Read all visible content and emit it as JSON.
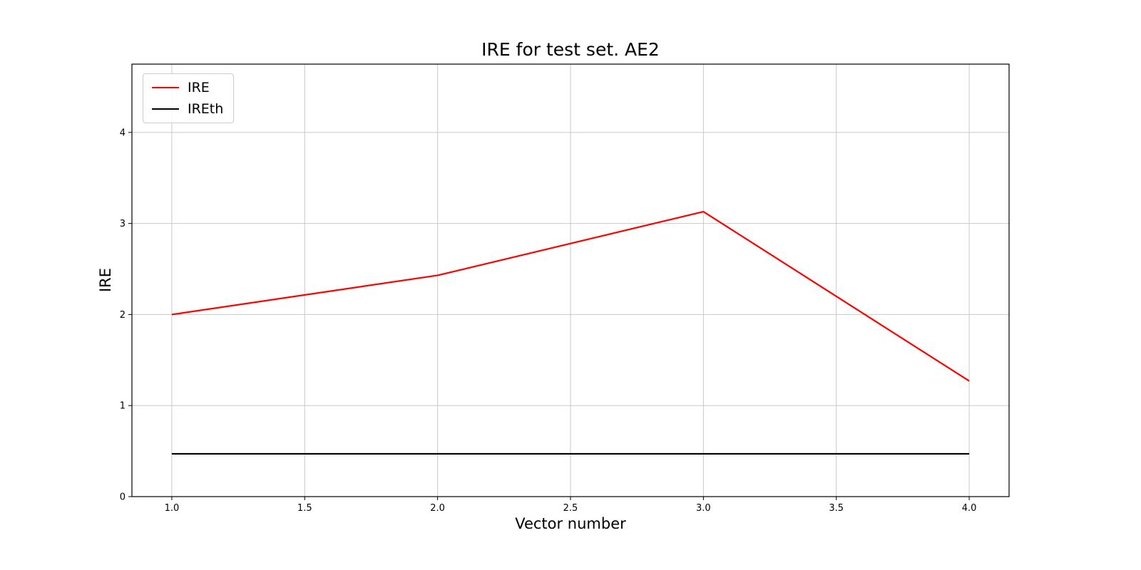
{
  "chart_data": {
    "type": "line",
    "title": "IRE for test set. AE2",
    "xlabel": "Vector number",
    "ylabel": "IRE",
    "x": [
      1,
      2,
      3,
      4
    ],
    "series": [
      {
        "name": "IRE",
        "color": "#ff0000",
        "values": [
          2.0,
          2.43,
          3.13,
          1.27
        ]
      },
      {
        "name": "IREth",
        "color": "#000000",
        "values": [
          0.47,
          0.47,
          0.47,
          0.47
        ]
      }
    ],
    "xlim": [
      0.85,
      4.15
    ],
    "ylim": [
      0,
      4.75
    ],
    "xticks": [
      1.0,
      1.5,
      2.0,
      2.5,
      3.0,
      3.5,
      4.0
    ],
    "xtick_labels": [
      "1.0",
      "1.5",
      "2.0",
      "2.5",
      "3.0",
      "3.5",
      "4.0"
    ],
    "yticks": [
      0,
      1,
      2,
      3,
      4
    ],
    "ytick_labels": [
      "0",
      "1",
      "2",
      "3",
      "4"
    ],
    "grid": true,
    "legend_position": "upper left",
    "grid_color": "#c9c9c9",
    "axis_color": "#000000"
  }
}
